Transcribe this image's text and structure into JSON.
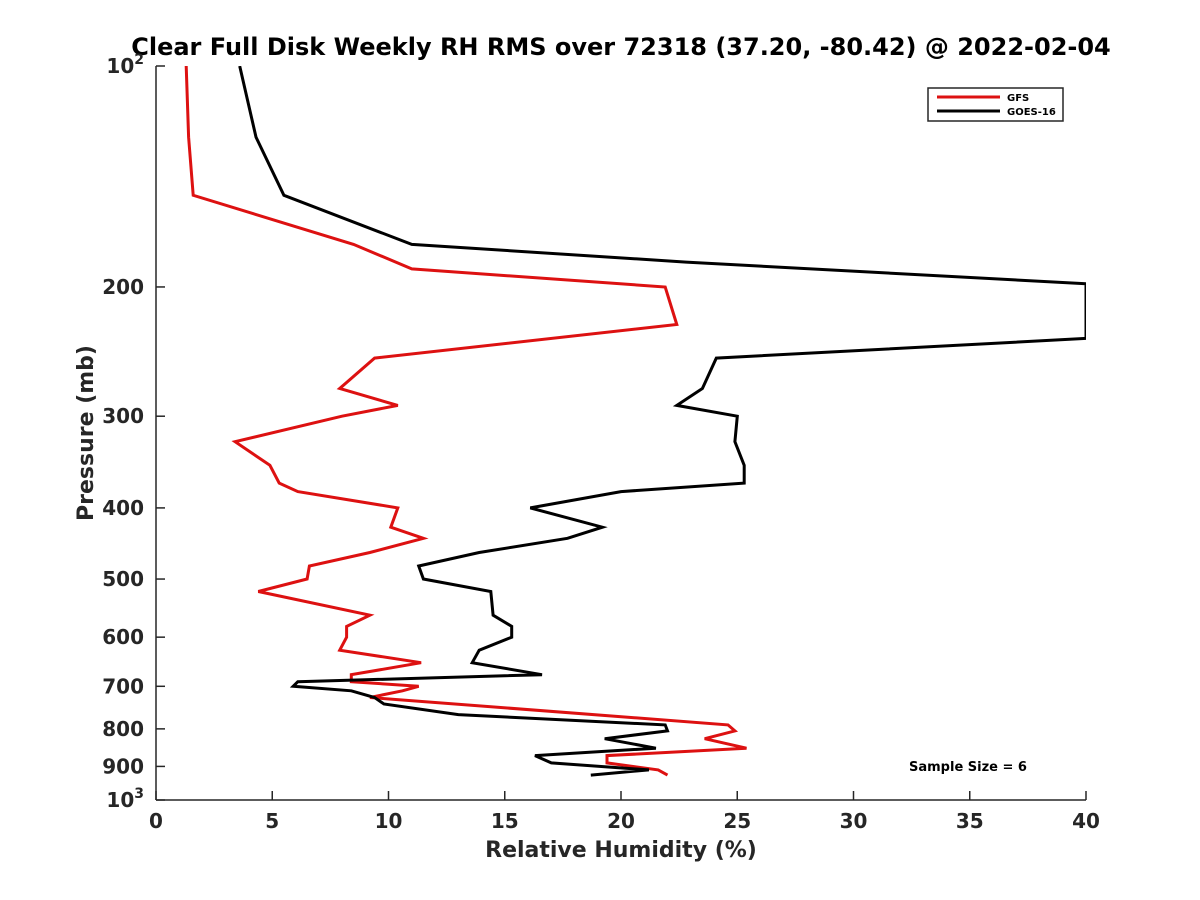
{
  "chart_data": {
    "type": "line",
    "title": "Clear Full Disk Weekly RH RMS over 72318 (37.20, -80.42) @ 2022-02-04",
    "xlabel": "Relative Humidity (%)",
    "ylabel": "Pressure (mb)",
    "xlim": [
      0,
      40
    ],
    "ylim": [
      100,
      1000
    ],
    "yscale": "log",
    "y_reversed": true,
    "x_ticks": [
      "0",
      "5",
      "10",
      "15",
      "20",
      "25",
      "30",
      "35",
      "40"
    ],
    "y_ticks": [
      {
        "value": 100,
        "base": "10",
        "exp": "2"
      },
      {
        "value": 200,
        "label": "200"
      },
      {
        "value": 300,
        "label": "300"
      },
      {
        "value": 400,
        "label": "400"
      },
      {
        "value": 500,
        "label": "500"
      },
      {
        "value": 600,
        "label": "600"
      },
      {
        "value": 700,
        "label": "700"
      },
      {
        "value": 800,
        "label": "800"
      },
      {
        "value": 900,
        "label": "900"
      },
      {
        "value": 1000,
        "base": "10",
        "exp": "3"
      }
    ],
    "legend_position": "top-right",
    "annotation": "Sample Size = 6",
    "series": [
      {
        "name": "GFS",
        "color": "#dd1111",
        "points": [
          [
            1.3,
            100
          ],
          [
            1.4,
            125
          ],
          [
            1.6,
            150
          ],
          [
            8.5,
            175
          ],
          [
            11.0,
            189
          ],
          [
            21.9,
            200
          ],
          [
            22.4,
            225
          ],
          [
            9.4,
            250
          ],
          [
            7.9,
            275
          ],
          [
            10.4,
            290
          ],
          [
            8.0,
            300
          ],
          [
            3.4,
            325
          ],
          [
            4.9,
            350
          ],
          [
            5.3,
            370
          ],
          [
            6.1,
            380
          ],
          [
            10.4,
            400
          ],
          [
            10.1,
            425
          ],
          [
            11.5,
            440
          ],
          [
            9.2,
            460
          ],
          [
            6.6,
            480
          ],
          [
            6.5,
            500
          ],
          [
            4.4,
            520
          ],
          [
            9.2,
            560
          ],
          [
            8.2,
            580
          ],
          [
            8.2,
            600
          ],
          [
            7.9,
            625
          ],
          [
            11.4,
            650
          ],
          [
            8.4,
            675
          ],
          [
            8.4,
            690
          ],
          [
            11.3,
            700
          ],
          [
            10.6,
            710
          ],
          [
            9.2,
            725
          ],
          [
            24.6,
            790
          ],
          [
            24.9,
            805
          ],
          [
            23.6,
            825
          ],
          [
            25.4,
            850
          ],
          [
            19.4,
            870
          ],
          [
            19.4,
            890
          ],
          [
            21.6,
            910
          ],
          [
            22.0,
            925
          ]
        ]
      },
      {
        "name": "GOES-16",
        "color": "#000000",
        "points": [
          [
            3.6,
            100
          ],
          [
            4.3,
            125
          ],
          [
            5.5,
            150
          ],
          [
            11.0,
            175
          ],
          [
            22.8,
            185
          ],
          [
            40.0,
            198
          ],
          [
            40.0,
            235
          ],
          [
            24.1,
            250
          ],
          [
            23.5,
            275
          ],
          [
            22.4,
            290
          ],
          [
            25.0,
            300
          ],
          [
            24.9,
            325
          ],
          [
            25.3,
            350
          ],
          [
            25.3,
            370
          ],
          [
            20.0,
            380
          ],
          [
            16.1,
            400
          ],
          [
            19.2,
            425
          ],
          [
            17.7,
            440
          ],
          [
            13.9,
            460
          ],
          [
            11.3,
            480
          ],
          [
            11.5,
            500
          ],
          [
            14.4,
            520
          ],
          [
            14.5,
            560
          ],
          [
            15.3,
            580
          ],
          [
            15.3,
            600
          ],
          [
            13.9,
            625
          ],
          [
            13.6,
            650
          ],
          [
            16.6,
            675
          ],
          [
            6.1,
            690
          ],
          [
            5.9,
            700
          ],
          [
            8.4,
            710
          ],
          [
            9.4,
            725
          ],
          [
            9.8,
            740
          ],
          [
            13.0,
            765
          ],
          [
            21.9,
            790
          ],
          [
            22.0,
            805
          ],
          [
            19.3,
            825
          ],
          [
            21.5,
            850
          ],
          [
            16.3,
            870
          ],
          [
            17.0,
            890
          ],
          [
            21.2,
            910
          ],
          [
            18.7,
            925
          ]
        ]
      }
    ]
  }
}
